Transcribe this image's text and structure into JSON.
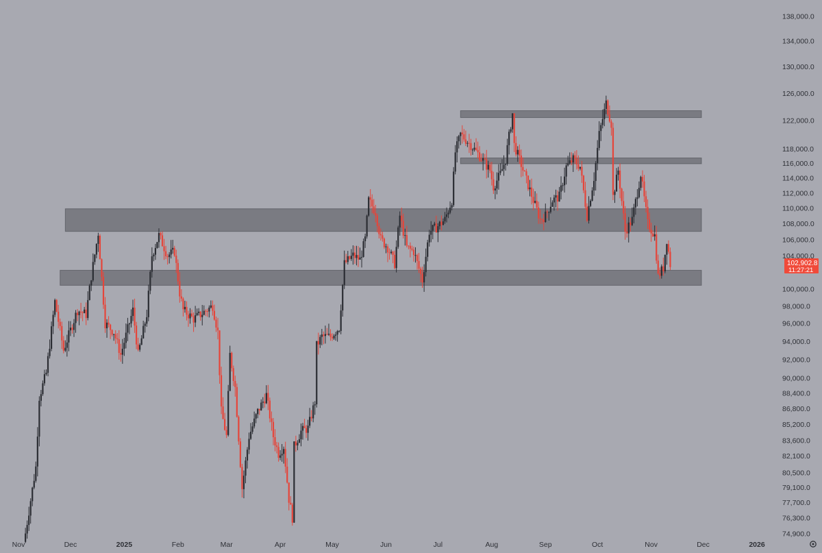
{
  "theme": {
    "background": "#a8a9b1",
    "up_color": "#2b2d33",
    "down_color": "#e5453a",
    "zone_color": "#5d5f66",
    "axis_text": "#2e3036",
    "price_tag_bg": "#f04a3a",
    "price_tag_text": "#ffffff"
  },
  "axis": {
    "y_labels": [
      "138,000.0",
      "134,000.0",
      "130,000.0",
      "126,000.0",
      "122,000.0",
      "118,000.0",
      "116,000.0",
      "114,000.0",
      "112,000.0",
      "110,000.0",
      "108,000.0",
      "106,000.0",
      "104,000.0",
      "100,000.0",
      "98,000.0",
      "96,000.0",
      "94,000.0",
      "92,000.0",
      "90,000.0",
      "88,400.0",
      "86,800.0",
      "85,200.0",
      "83,600.0",
      "82,100.0",
      "80,500.0",
      "79,100.0",
      "77,700.0",
      "76,300.0",
      "74,900.0"
    ],
    "x_labels": [
      "Nov",
      "Dec",
      "2025",
      "Feb",
      "Mar",
      "Apr",
      "May",
      "Jun",
      "Jul",
      "Aug",
      "Sep",
      "Oct",
      "Nov",
      "Dec",
      "2026"
    ],
    "settings_icon": "gear-icon"
  },
  "last_price": {
    "value": "102,902.8",
    "countdown": "11:27:21"
  },
  "chart_data": {
    "type": "candlestick",
    "title": "",
    "y_scale": "log",
    "ylim": [
      74200,
      139500
    ],
    "xlim": [
      "2024-11-01",
      "2026-01-10"
    ],
    "grid": false,
    "last_price": 102902.8,
    "zones": [
      {
        "low": 107000,
        "high": 109900,
        "from": "2024-11-28",
        "to": "2025-11-30"
      },
      {
        "low": 100400,
        "high": 102200,
        "from": "2024-11-25",
        "to": "2025-11-30"
      },
      {
        "low": 122400,
        "high": 123400,
        "from": "2025-07-14",
        "to": "2025-11-30"
      },
      {
        "low": 115900,
        "high": 116700,
        "from": "2025-07-14",
        "to": "2025-11-30"
      }
    ],
    "path": [
      [
        "2024-11-05",
        74900
      ],
      [
        "2024-11-11",
        81000
      ],
      [
        "2024-11-13",
        88000
      ],
      [
        "2024-11-17",
        90500
      ],
      [
        "2024-11-22",
        98500
      ],
      [
        "2024-11-27",
        93000
      ],
      [
        "2024-12-05",
        97500
      ],
      [
        "2024-12-10",
        97000
      ],
      [
        "2024-12-13",
        101500
      ],
      [
        "2024-12-17",
        106800
      ],
      [
        "2024-12-21",
        96000
      ],
      [
        "2024-12-26",
        95000
      ],
      [
        "2024-12-30",
        92500
      ],
      [
        "2025-01-06",
        97500
      ],
      [
        "2025-01-09",
        92500
      ],
      [
        "2025-01-14",
        97000
      ],
      [
        "2025-01-17",
        104000
      ],
      [
        "2025-01-21",
        106500
      ],
      [
        "2025-01-26",
        104000
      ],
      [
        "2025-01-30",
        104500
      ],
      [
        "2025-02-02",
        99500
      ],
      [
        "2025-02-04",
        97500
      ],
      [
        "2025-02-10",
        96500
      ],
      [
        "2025-02-14",
        97000
      ],
      [
        "2025-02-21",
        98000
      ],
      [
        "2025-02-24",
        95000
      ],
      [
        "2025-02-26",
        86500
      ],
      [
        "2025-03-01",
        84000
      ],
      [
        "2025-03-03",
        92500
      ],
      [
        "2025-03-06",
        89000
      ],
      [
        "2025-03-10",
        79000
      ],
      [
        "2025-03-14",
        84000
      ],
      [
        "2025-03-19",
        86500
      ],
      [
        "2025-03-24",
        88200
      ],
      [
        "2025-03-28",
        84000
      ],
      [
        "2025-03-31",
        82300
      ],
      [
        "2025-04-03",
        83000
      ],
      [
        "2025-04-06",
        78000
      ],
      [
        "2025-04-08",
        76300
      ],
      [
        "2025-04-09",
        83000
      ],
      [
        "2025-04-13",
        84500
      ],
      [
        "2025-04-17",
        84800
      ],
      [
        "2025-04-21",
        87500
      ],
      [
        "2025-04-22",
        93500
      ],
      [
        "2025-04-25",
        94500
      ],
      [
        "2025-04-30",
        94500
      ],
      [
        "2025-05-05",
        95500
      ],
      [
        "2025-05-08",
        103000
      ],
      [
        "2025-05-13",
        104000
      ],
      [
        "2025-05-17",
        103500
      ],
      [
        "2025-05-20",
        106000
      ],
      [
        "2025-05-22",
        111000
      ],
      [
        "2025-05-26",
        109500
      ],
      [
        "2025-05-29",
        106000
      ],
      [
        "2025-06-02",
        105000
      ],
      [
        "2025-06-06",
        103000
      ],
      [
        "2025-06-09",
        109000
      ],
      [
        "2025-06-13",
        105000
      ],
      [
        "2025-06-17",
        104500
      ],
      [
        "2025-06-22",
        101000
      ],
      [
        "2025-06-26",
        107000
      ],
      [
        "2025-06-30",
        107500
      ],
      [
        "2025-07-05",
        108500
      ],
      [
        "2025-07-09",
        111000
      ],
      [
        "2025-07-11",
        117500
      ],
      [
        "2025-07-14",
        120000
      ],
      [
        "2025-07-20",
        118500
      ],
      [
        "2025-07-25",
        117000
      ],
      [
        "2025-07-31",
        115000
      ],
      [
        "2025-08-02",
        112800
      ],
      [
        "2025-08-06",
        114500
      ],
      [
        "2025-08-09",
        116500
      ],
      [
        "2025-08-13",
        123000
      ],
      [
        "2025-08-14",
        118500
      ],
      [
        "2025-08-18",
        115800
      ],
      [
        "2025-08-22",
        113000
      ],
      [
        "2025-08-25",
        111000
      ],
      [
        "2025-08-29",
        108500
      ],
      [
        "2025-09-01",
        109000
      ],
      [
        "2025-09-05",
        111000
      ],
      [
        "2025-09-09",
        111500
      ],
      [
        "2025-09-13",
        115500
      ],
      [
        "2025-09-17",
        116500
      ],
      [
        "2025-09-21",
        115500
      ],
      [
        "2025-09-25",
        109000
      ],
      [
        "2025-09-29",
        114000
      ],
      [
        "2025-10-02",
        120000
      ],
      [
        "2025-10-06",
        124500
      ],
      [
        "2025-10-09",
        121500
      ],
      [
        "2025-10-10",
        111500
      ],
      [
        "2025-10-13",
        115000
      ],
      [
        "2025-10-17",
        107000
      ],
      [
        "2025-10-21",
        108500
      ],
      [
        "2025-10-26",
        114500
      ],
      [
        "2025-10-30",
        108000
      ],
      [
        "2025-11-03",
        106500
      ],
      [
        "2025-11-05",
        101500
      ],
      [
        "2025-11-08",
        102500
      ],
      [
        "2025-11-10",
        106000
      ],
      [
        "2025-11-12",
        102900
      ]
    ]
  }
}
